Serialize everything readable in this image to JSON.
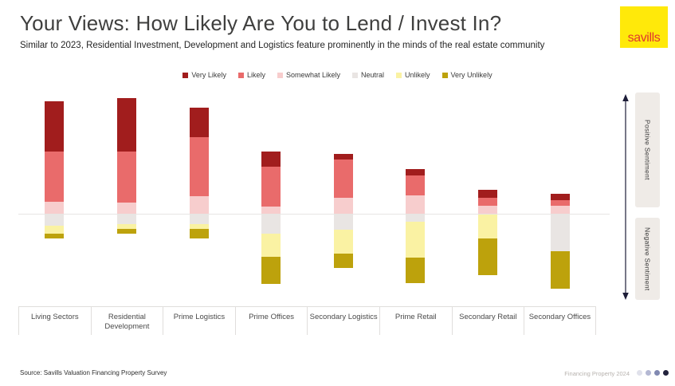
{
  "header": {
    "title": "Your Views: How Likely Are You to Lend / Invest In?",
    "subtitle": "Similar to 2023, Residential Investment, Development and Logistics feature prominently in the minds of the real estate community",
    "logo_text": "savills"
  },
  "brand": {
    "logo_bg": "#FFE90A",
    "logo_text_color": "#E0392E"
  },
  "legend": {
    "items": [
      {
        "label": "Very Likely",
        "color": "#A11D1D"
      },
      {
        "label": "Likely",
        "color": "#E96B6B"
      },
      {
        "label": "Somewhat Likely",
        "color": "#F7CDCD"
      },
      {
        "label": "Neutral",
        "color": "#E9E5E3"
      },
      {
        "label": "Unlikely",
        "color": "#FAF2A3"
      },
      {
        "label": "Very Unlikely",
        "color": "#BDA20C"
      }
    ]
  },
  "chart_data": {
    "type": "bar",
    "subtype": "diverging-stacked",
    "title": "Your Views: How Likely Are You to Lend / Invest In?",
    "unit": "percent of respondents (estimated from bar heights, no value axis shown)",
    "legend_position": "top",
    "gridlines": false,
    "baseline": 0,
    "categories": [
      "Living Sectors",
      "Residential Development",
      "Prime Logistics",
      "Prime Offices",
      "Secondary Logistics",
      "Prime Retail",
      "Secondary Retail",
      "Secondary Offices"
    ],
    "positive_stack_order_from_baseline": [
      "Somewhat Likely",
      "Likely",
      "Very Likely"
    ],
    "negative_stack_order_from_baseline": [
      "Neutral",
      "Unlikely",
      "Very Unlikely"
    ],
    "series": [
      {
        "name": "Very Likely",
        "direction": "positive",
        "color": "#A11D1D",
        "values": [
          37,
          39,
          22,
          11,
          4,
          5,
          6,
          5
        ]
      },
      {
        "name": "Likely",
        "direction": "positive",
        "color": "#E96B6B",
        "values": [
          36.5,
          37,
          43,
          29,
          28,
          14.5,
          6,
          4
        ]
      },
      {
        "name": "Somewhat Likely",
        "direction": "positive",
        "color": "#F7CDCD",
        "values": [
          9,
          8.5,
          13,
          5.5,
          12,
          13.5,
          6,
          6
        ]
      },
      {
        "name": "Neutral",
        "direction": "negative",
        "color": "#E9E5E3",
        "values": [
          8.5,
          7,
          7.5,
          14,
          11.5,
          5.5,
          0,
          27
        ]
      },
      {
        "name": "Unlikely",
        "direction": "negative",
        "color": "#FAF2A3",
        "values": [
          5.5,
          3.5,
          3.5,
          17,
          17.5,
          26,
          18,
          0
        ]
      },
      {
        "name": "Very Unlikely",
        "direction": "negative",
        "color": "#BDA20C",
        "values": [
          3.5,
          4,
          7,
          20,
          10.5,
          19,
          26.5,
          27.5
        ]
      }
    ],
    "annotations": {
      "positive_axis_label": "Positive Sentiment",
      "negative_axis_label": "Negative Sentiment"
    }
  },
  "sentiment": {
    "positive": "Positive Sentiment",
    "negative": "Negative Sentiment"
  },
  "footer": {
    "source": "Source: Savills Valuation Financing Property Survey",
    "brand_footer": "Financing Property 2024",
    "pagination_dot_colors": [
      "#E0E1EB",
      "#B4B8D3",
      "#8189B1",
      "#22223C"
    ]
  }
}
